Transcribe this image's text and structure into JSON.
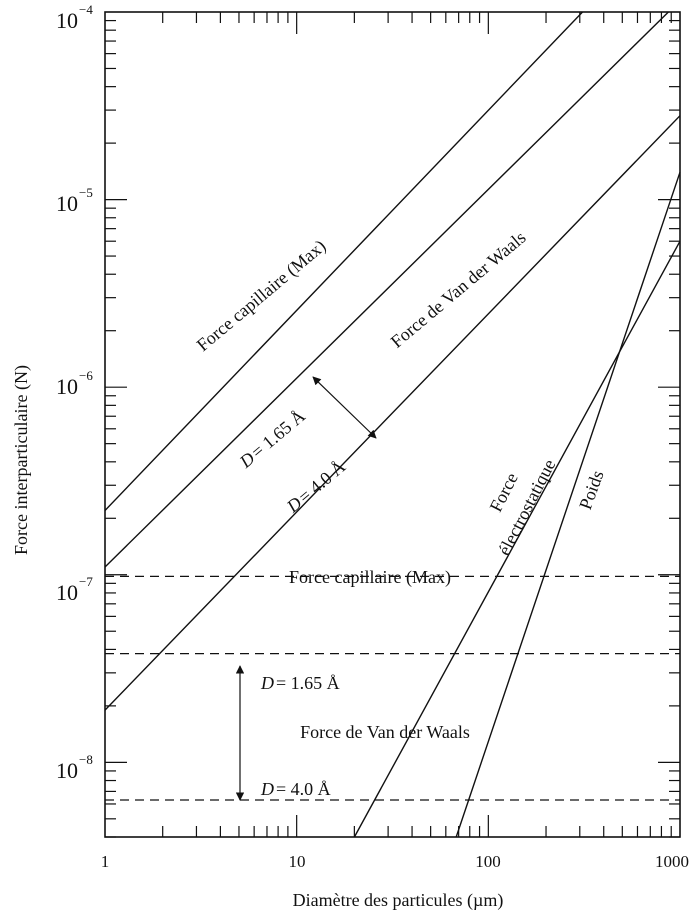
{
  "chart_data": {
    "type": "line",
    "xscale": "log",
    "yscale": "log",
    "xlim": [
      1,
      1000
    ],
    "ylim": [
      4e-09,
      0.0001
    ],
    "xlabel": "Diamètre des particules (µm)",
    "ylabel": "Force interparticulaire (N)",
    "x_ticks": [
      {
        "value": 1,
        "label": "1"
      },
      {
        "value": 10,
        "label": "10"
      },
      {
        "value": 100,
        "label": "100"
      },
      {
        "value": 1000,
        "label": "1000"
      }
    ],
    "y_ticks": [
      {
        "value": 1e-08,
        "base": "10",
        "exp": "−8"
      },
      {
        "value": 1e-07,
        "base": "10",
        "exp": "−7"
      },
      {
        "value": 1e-06,
        "base": "10",
        "exp": "−6"
      },
      {
        "value": 1e-05,
        "base": "10",
        "exp": "−5"
      },
      {
        "value": 0.0001,
        "base": "10",
        "exp": "−4"
      }
    ],
    "grid": false,
    "series": [
      {
        "name": "Force capillaire (Max)",
        "style": "solid",
        "x": [
          1,
          310
        ],
        "y": [
          2.2e-07,
          0.0001
        ]
      },
      {
        "name": "Force de Van der Waals D = 1.65 Å",
        "style": "solid",
        "x": [
          1,
          870
        ],
        "y": [
          1.1e-07,
          0.0001
        ]
      },
      {
        "name": "Force de Van der Waals D = 4.0 Å",
        "style": "solid",
        "x": [
          1,
          1000
        ],
        "y": [
          1.9e-08,
          2.8e-05
        ]
      },
      {
        "name": "Force électrostatique",
        "style": "solid",
        "x": [
          20,
          1000
        ],
        "y": [
          4e-09,
          6e-06
        ]
      },
      {
        "name": "Poids",
        "style": "solid",
        "x": [
          68,
          1000
        ],
        "y": [
          4e-09,
          1.4e-05
        ]
      },
      {
        "name": "Force capillaire (Max)",
        "style": "dashed",
        "x": [
          1,
          1000
        ],
        "y": [
          9.8e-08,
          9.8e-08
        ]
      },
      {
        "name": "Force de Van der Waals D = 1.65 Å",
        "style": "dashed",
        "x": [
          1,
          1000
        ],
        "y": [
          3.8e-08,
          3.8e-08
        ]
      },
      {
        "name": "Force de Van der Waals D = 4.0 Å",
        "style": "dashed",
        "x": [
          1,
          1000
        ],
        "y": [
          6.3e-09,
          6.3e-09
        ]
      }
    ],
    "annotations": {
      "capillary_solid": "Force capillaire (Max)",
      "vdw_solid": "Force de Van der Waals",
      "d165_solid": "= 1.65 Å",
      "d40_solid": "= 4.0 Å",
      "electro_1": "Force",
      "electro_2": "électrostatique",
      "poids": "Poids",
      "capillary_dash": "Force capillaire (Max)",
      "d165_dash": "= 1.65 Å",
      "vdw_dash": "Force de Van der Waals",
      "d40_dash": "= 4.0 Å",
      "d_symbol": "D"
    }
  }
}
